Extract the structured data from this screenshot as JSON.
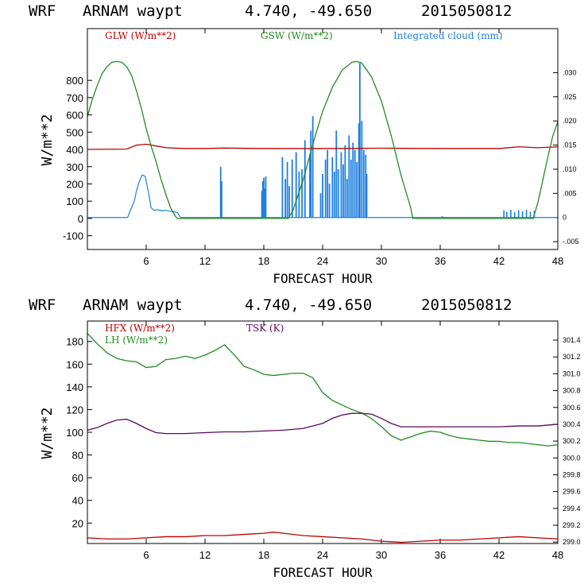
{
  "colors": {
    "red": "#bb0000",
    "green": "#228b22",
    "blue": "#1e7fe0",
    "purple": "#5a0a5a",
    "axis": "#000000"
  },
  "chart_data": [
    {
      "type": "line",
      "title": {
        "model": "WRF",
        "station": "ARNAM waypt",
        "coords": "4.740, -49.650",
        "date": "2015050812"
      },
      "xlabel": "FORECAST HOUR",
      "ylabel": "W/m**2",
      "xlim": [
        0,
        48
      ],
      "ylim": [
        -180,
        1100
      ],
      "xticks": [
        6,
        12,
        18,
        24,
        30,
        36,
        42,
        48
      ],
      "yticks": [
        -100,
        0,
        100,
        200,
        300,
        400,
        500,
        600,
        700,
        800
      ],
      "y2lim": [
        -0.00663,
        0.03912
      ],
      "y2ticks": [
        -0.005,
        0,
        0.005,
        0.01,
        0.015,
        0.02,
        0.025,
        0.03
      ],
      "y2ticklabels": [
        "-.005",
        "0",
        ".005",
        ".010",
        ".015",
        ".020",
        ".025",
        ".030"
      ],
      "legend": [
        {
          "label": "GLW (W/m**2)",
          "color": "red"
        },
        {
          "label": "GSW (W/m**2)",
          "color": "green"
        },
        {
          "label": "Integrated cloud (mm)",
          "color": "blue"
        }
      ],
      "series": [
        {
          "name": "GLW",
          "color": "red",
          "axis": "left",
          "x": [
            0,
            4,
            5,
            6,
            7,
            8,
            10,
            12,
            14,
            18,
            24,
            30,
            36,
            42,
            44,
            46,
            48
          ],
          "y": [
            400,
            402,
            425,
            430,
            420,
            410,
            405,
            405,
            408,
            405,
            405,
            407,
            405,
            405,
            415,
            410,
            415
          ]
        },
        {
          "name": "GSW",
          "color": "green",
          "axis": "left",
          "x": [
            0,
            0.5,
            1,
            1.5,
            2,
            2.5,
            3,
            3.5,
            4,
            4.5,
            5,
            5.5,
            6,
            6.5,
            7,
            7.5,
            8,
            8.5,
            9,
            9.2,
            20.5,
            21,
            22,
            23,
            24,
            25,
            26,
            27,
            27.5,
            28,
            29,
            30,
            31,
            32,
            33,
            33.2,
            45.5,
            46,
            46.5,
            47,
            47.5,
            48
          ],
          "y": [
            590,
            690,
            770,
            840,
            880,
            905,
            910,
            905,
            880,
            830,
            740,
            640,
            520,
            420,
            330,
            230,
            140,
            60,
            10,
            0,
            0,
            50,
            220,
            430,
            620,
            760,
            860,
            905,
            910,
            900,
            820,
            680,
            480,
            250,
            60,
            0,
            0,
            100,
            230,
            360,
            480,
            560
          ]
        }
      ],
      "cloud_series": {
        "name": "Integrated cloud",
        "color": "blue",
        "axis": "right",
        "baseline_segments": [
          [
            0,
            4.1
          ],
          [
            9.5,
            48
          ]
        ],
        "smooth": {
          "x": [
            4.1,
            4.4,
            4.8,
            5.0,
            5.3,
            5.6,
            5.9,
            6.2,
            6.5,
            6.8,
            7.2,
            7.6,
            8.0,
            8.4,
            8.8,
            9.2,
            9.5
          ],
          "y": [
            0,
            0.0015,
            0.0035,
            0.0055,
            0.0075,
            0.0088,
            0.0085,
            0.0055,
            0.002,
            0.0015,
            0.0016,
            0.0014,
            0.0015,
            0.0013,
            0.0012,
            0.001,
            0
          ]
        },
        "spikes": [
          [
            13.6,
            0.0105
          ],
          [
            13.7,
            0.0075
          ],
          [
            17.8,
            0.0055
          ],
          [
            17.9,
            0.0075
          ],
          [
            18.0,
            0.0082
          ],
          [
            18.1,
            0.006
          ],
          [
            18.2,
            0.0085
          ],
          [
            19.9,
            0.0125
          ],
          [
            20.2,
            0.008
          ],
          [
            20.4,
            0.0115
          ],
          [
            20.6,
            0.0065
          ],
          [
            20.9,
            0.012
          ],
          [
            21.3,
            0.0135
          ],
          [
            21.6,
            0.0095
          ],
          [
            21.9,
            0.01
          ],
          [
            22.2,
            0.016
          ],
          [
            22.7,
            0.013
          ],
          [
            22.8,
            0.018
          ],
          [
            23.0,
            0.021
          ],
          [
            23.8,
            0.005
          ],
          [
            24.0,
            0.009
          ],
          [
            24.3,
            0.012
          ],
          [
            24.5,
            0.014
          ],
          [
            24.7,
            0.007
          ],
          [
            25.0,
            0.0125
          ],
          [
            25.2,
            0.0095
          ],
          [
            25.4,
            0.018
          ],
          [
            25.6,
            0.01
          ],
          [
            25.9,
            0.0135
          ],
          [
            26.1,
            0.011
          ],
          [
            26.3,
            0.015
          ],
          [
            26.5,
            0.008
          ],
          [
            26.7,
            0.017
          ],
          [
            26.9,
            0.012
          ],
          [
            27.1,
            0.0155
          ],
          [
            27.3,
            0.014
          ],
          [
            27.5,
            0.0115
          ],
          [
            27.7,
            0.0195
          ],
          [
            27.8,
            0.032
          ],
          [
            28.0,
            0.02
          ],
          [
            28.2,
            0.014
          ],
          [
            28.4,
            0.013
          ],
          [
            28.5,
            0.009
          ]
        ],
        "fuzz": [
          [
            36.2,
            0.0003
          ],
          [
            42.5,
            0.0015
          ],
          [
            42.8,
            0.0012
          ],
          [
            43.2,
            0.0016
          ],
          [
            43.6,
            0.0011
          ],
          [
            44.0,
            0.0015
          ],
          [
            44.4,
            0.0013
          ],
          [
            44.8,
            0.0016
          ],
          [
            45.2,
            0.0012
          ],
          [
            45.6,
            0.0014
          ]
        ]
      }
    },
    {
      "type": "line",
      "title": {
        "model": "WRF",
        "station": "ARNAM waypt",
        "coords": "4.740, -49.650",
        "date": "2015050812"
      },
      "xlabel": "FORECAST HOUR",
      "ylabel": "W/m**2",
      "xlim": [
        0,
        48
      ],
      "ylim": [
        2,
        198
      ],
      "xticks": [
        6,
        12,
        18,
        24,
        30,
        36,
        42,
        48
      ],
      "yticks": [
        20,
        40,
        60,
        80,
        100,
        120,
        140,
        160,
        180
      ],
      "y2lim": [
        298.983,
        301.627
      ],
      "y2ticks": [
        299.0,
        299.2,
        299.4,
        299.6,
        299.8,
        300.0,
        300.2,
        300.4,
        300.6,
        300.8,
        301.0,
        301.2,
        301.4
      ],
      "y2ticklabels": [
        "299.0",
        "299.2",
        "299.4",
        "299.6",
        "299.8",
        "300.0",
        "300.2",
        "300.4",
        "300.6",
        "300.8",
        "301.0",
        "301.2",
        "301.4"
      ],
      "legend": [
        {
          "label": "HFX (W/m**2)",
          "color": "red"
        },
        {
          "label": "LH  (W/m**2)",
          "color": "green"
        },
        {
          "label": "TSK (K)",
          "color": "purple"
        }
      ],
      "series": [
        {
          "name": "HFX",
          "color": "red",
          "axis": "left",
          "x": [
            0,
            2,
            4,
            6,
            8,
            10,
            12,
            14,
            16,
            18,
            19,
            20,
            22,
            24,
            26,
            28,
            30,
            32,
            34,
            36,
            38,
            40,
            42,
            44,
            46,
            48
          ],
          "y": [
            7,
            6,
            6,
            7,
            8,
            8,
            9,
            9,
            10,
            11,
            12,
            11,
            9,
            8,
            7,
            6,
            4,
            3,
            4,
            5,
            5,
            6,
            7,
            8,
            7,
            6
          ]
        },
        {
          "name": "LH",
          "color": "green",
          "axis": "left",
          "x": [
            0,
            1,
            2,
            3,
            4,
            5,
            6,
            7,
            8,
            9,
            10,
            11,
            12,
            13,
            14,
            15,
            16,
            17,
            18,
            19,
            20,
            21,
            22,
            23,
            24,
            25,
            26,
            27,
            28,
            29,
            30,
            31,
            32,
            33,
            34,
            35,
            36,
            37,
            38,
            39,
            40,
            41,
            42,
            43,
            44,
            45,
            46,
            47,
            48
          ],
          "y": [
            187,
            178,
            170,
            165,
            163,
            162,
            157,
            158,
            164,
            165,
            167,
            165,
            168,
            172,
            177,
            168,
            158,
            155,
            151,
            150,
            151,
            152,
            152,
            148,
            135,
            128,
            124,
            120,
            117,
            112,
            105,
            97,
            93,
            96,
            99,
            101,
            100,
            97,
            95,
            94,
            93,
            92,
            92,
            91,
            91,
            90,
            89,
            88,
            89
          ]
        },
        {
          "name": "TSK",
          "color": "purple",
          "axis": "right",
          "x": [
            0,
            1,
            2,
            3,
            4,
            5,
            6,
            7,
            8,
            10,
            12,
            14,
            16,
            18,
            20,
            22,
            24,
            25,
            26,
            27,
            28,
            29,
            30,
            31,
            32,
            34,
            36,
            38,
            40,
            42,
            44,
            46,
            48
          ],
          "y": [
            300.33,
            300.36,
            300.41,
            300.45,
            300.46,
            300.41,
            300.35,
            300.3,
            300.29,
            300.29,
            300.3,
            300.31,
            300.31,
            300.32,
            300.33,
            300.35,
            300.41,
            300.47,
            300.51,
            300.53,
            300.53,
            300.52,
            300.47,
            300.41,
            300.37,
            300.37,
            300.37,
            300.37,
            300.37,
            300.37,
            300.38,
            300.38,
            300.4
          ]
        }
      ]
    }
  ]
}
